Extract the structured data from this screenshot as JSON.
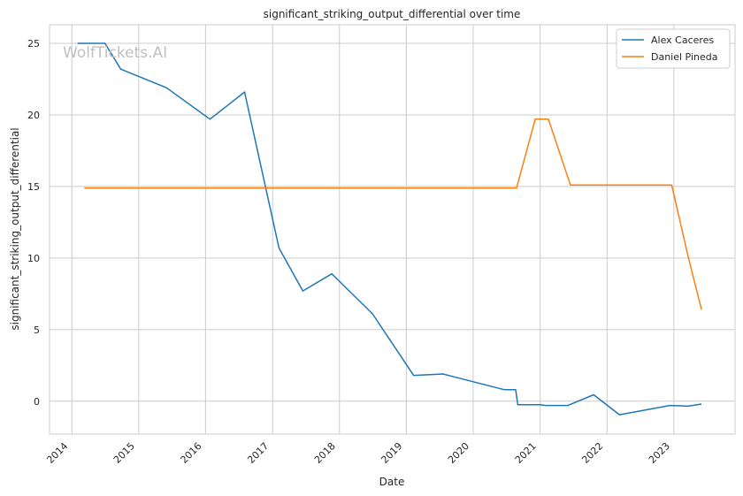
{
  "chart_data": {
    "type": "line",
    "title": "significant_striking_output_differential over time",
    "xlabel": "Date",
    "ylabel": "significant_striking_output_differential",
    "watermark": "WolfTickets.AI",
    "x_ticks": [
      "2014",
      "2015",
      "2016",
      "2017",
      "2018",
      "2019",
      "2020",
      "2021",
      "2022",
      "2023"
    ],
    "y_ticks": [
      "0",
      "5",
      "10",
      "15",
      "20",
      "25"
    ],
    "xlim": [
      "2013-09-01",
      "2023-12-01"
    ],
    "ylim": [
      -2.3,
      26.3
    ],
    "grid": true,
    "legend_position": "top-right",
    "series": [
      {
        "name": "Alex Caceres",
        "color": "#1f77b4",
        "points": [
          [
            "2014-02-01",
            25.0
          ],
          [
            "2014-07-01",
            25.0
          ],
          [
            "2014-09-25",
            23.2
          ],
          [
            "2015-06-01",
            21.9
          ],
          [
            "2016-01-25",
            19.7
          ],
          [
            "2016-08-01",
            21.6
          ],
          [
            "2017-02-05",
            10.7
          ],
          [
            "2017-06-15",
            7.7
          ],
          [
            "2017-11-20",
            8.9
          ],
          [
            "2018-07-01",
            6.1
          ],
          [
            "2019-02-10",
            1.8
          ],
          [
            "2019-07-20",
            1.9
          ],
          [
            "2020-06-20",
            0.8
          ],
          [
            "2020-08-20",
            0.8
          ],
          [
            "2020-09-01",
            -0.25
          ],
          [
            "2021-01-01",
            -0.25
          ],
          [
            "2021-02-01",
            -0.3
          ],
          [
            "2021-06-01",
            -0.3
          ],
          [
            "2021-10-20",
            0.45
          ],
          [
            "2022-03-10",
            -0.95
          ],
          [
            "2022-12-10",
            -0.3
          ],
          [
            "2023-03-20",
            -0.35
          ],
          [
            "2023-06-01",
            -0.2
          ]
        ]
      },
      {
        "name": "Daniel Pineda",
        "color": "#ff7f0e",
        "points": [
          [
            "2014-03-10",
            14.9
          ],
          [
            "2020-08-25",
            14.9
          ],
          [
            "2020-12-05",
            19.7
          ],
          [
            "2021-02-15",
            19.7
          ],
          [
            "2021-06-15",
            15.1
          ],
          [
            "2022-12-20",
            15.1
          ],
          [
            "2023-03-20",
            10.1
          ],
          [
            "2023-06-01",
            6.4
          ]
        ]
      }
    ]
  }
}
